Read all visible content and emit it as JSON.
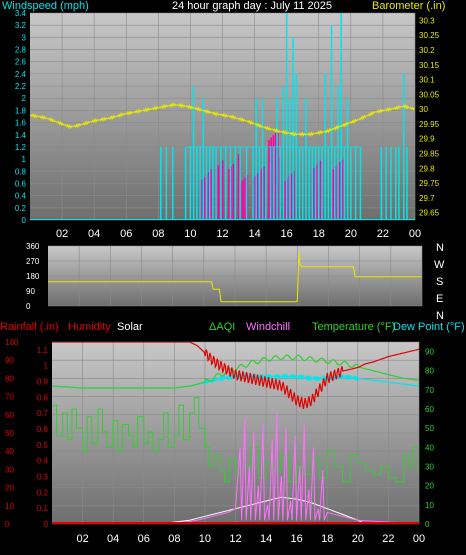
{
  "header": {
    "left_label": "Windspeed (mph)",
    "title": "24 hour graph day : July 11 2025",
    "right_label": "Barometer (.in)"
  },
  "colors": {
    "background": "#000000",
    "panel_light": "#c8c8c8",
    "panel_dark": "#707070",
    "grid": "#8a8a8a",
    "wind": "#00e5ee",
    "gust_fill": "#ff00a0",
    "barometer": "#e8e800",
    "direction": "#e8e800",
    "rain": "#e00000",
    "humidity": "#e00000",
    "solar": "#ffffff",
    "aqi": "#30d030",
    "windchill": "#ff70ff",
    "temperature": "#30d030",
    "dewpoint": "#00e5ee",
    "axis_text_left_top": "#00e5ee",
    "axis_text_right_top": "#e8e800",
    "axis_text_left_bottom": "#e00000",
    "axis_text_right_bottom": "#30d030"
  },
  "bottom_legend": {
    "rainfall": "Rainfall (.in)",
    "humidity": "Humidity",
    "solar": "Solar",
    "aqi": "AQI",
    "windchill": "Windchill",
    "temperature": "Temperature (°F)",
    "dewpoint": "Dew Point (°F)"
  },
  "compass": [
    "N",
    "W",
    "S",
    "E",
    "N"
  ],
  "chart_data": [
    {
      "type": "line",
      "id": "wind_barometer",
      "title": "24 hour graph day : July 11 2025",
      "x_hours": [
        0,
        24
      ],
      "x_ticks": [
        "02",
        "04",
        "06",
        "08",
        "10",
        "12",
        "14",
        "16",
        "18",
        "20",
        "22",
        "00"
      ],
      "ylabel_left": "Windspeed (mph)",
      "ylim_left": [
        0,
        3.4
      ],
      "y_ticks_left": [
        "0",
        "0.2",
        "0.4",
        "0.6",
        "0.8",
        "1",
        "1.2",
        "1.4",
        "1.6",
        "1.8",
        "2",
        "2.2",
        "2.4",
        "2.6",
        "2.8",
        "3",
        "3.2",
        "3.4"
      ],
      "ylabel_right": "Barometer (.in)",
      "ylim_right": [
        29.625,
        30.325
      ],
      "y_ticks_right": [
        "29.65",
        "29.7",
        "29.75",
        "29.8",
        "29.85",
        "29.9",
        "29.95",
        "30",
        "30.05",
        "30.1",
        "30.15",
        "30.2",
        "30.25",
        "30.3"
      ],
      "barometer": {
        "x": [
          0,
          1,
          2,
          2.5,
          3,
          4,
          5,
          6,
          7,
          8,
          9,
          9.7,
          10.5,
          11.5,
          12.5,
          13.5,
          14.5,
          15.5,
          16.5,
          17.5,
          18.5,
          19.5,
          20.5,
          21.5,
          22.5,
          23.3,
          24
        ],
        "y": [
          29.98,
          29.97,
          29.95,
          29.94,
          29.945,
          29.96,
          29.97,
          29.985,
          29.995,
          30.005,
          30.015,
          30.01,
          30.0,
          29.985,
          29.975,
          29.96,
          29.94,
          29.925,
          29.915,
          29.915,
          29.925,
          29.945,
          29.965,
          29.99,
          30.0,
          30.01,
          30.0
        ]
      },
      "wind_spikes": [
        {
          "x": 8.15,
          "y": 1.2
        },
        {
          "x": 8.5,
          "y": 1.2
        },
        {
          "x": 8.9,
          "y": 1.2
        },
        {
          "x": 9.7,
          "y": 1.2
        },
        {
          "x": 10.0,
          "y": 1.2
        },
        {
          "x": 10.2,
          "y": 2.2
        },
        {
          "x": 10.4,
          "y": 1.2
        },
        {
          "x": 10.6,
          "y": 1.2
        },
        {
          "x": 10.8,
          "y": 2.0
        },
        {
          "x": 11.0,
          "y": 1.2
        },
        {
          "x": 11.2,
          "y": 1.2
        },
        {
          "x": 11.4,
          "y": 1.2
        },
        {
          "x": 11.6,
          "y": 1.2
        },
        {
          "x": 11.9,
          "y": 1.2
        },
        {
          "x": 12.2,
          "y": 1.2
        },
        {
          "x": 12.5,
          "y": 1.2
        },
        {
          "x": 12.8,
          "y": 1.2
        },
        {
          "x": 13.1,
          "y": 1.2
        },
        {
          "x": 13.5,
          "y": 1.2
        },
        {
          "x": 13.9,
          "y": 1.2
        },
        {
          "x": 14.1,
          "y": 2.0
        },
        {
          "x": 14.3,
          "y": 1.2
        },
        {
          "x": 14.5,
          "y": 2.0
        },
        {
          "x": 14.7,
          "y": 1.2
        },
        {
          "x": 15.0,
          "y": 1.2
        },
        {
          "x": 15.2,
          "y": 1.2
        },
        {
          "x": 15.4,
          "y": 2.0
        },
        {
          "x": 15.6,
          "y": 1.2
        },
        {
          "x": 15.8,
          "y": 2.2
        },
        {
          "x": 16.0,
          "y": 3.4
        },
        {
          "x": 16.2,
          "y": 2.0
        },
        {
          "x": 16.4,
          "y": 3.0
        },
        {
          "x": 16.6,
          "y": 2.4
        },
        {
          "x": 16.8,
          "y": 1.2
        },
        {
          "x": 17.0,
          "y": 1.2
        },
        {
          "x": 17.2,
          "y": 2.0
        },
        {
          "x": 17.4,
          "y": 1.2
        },
        {
          "x": 17.6,
          "y": 1.2
        },
        {
          "x": 17.8,
          "y": 1.2
        },
        {
          "x": 18.0,
          "y": 1.2
        },
        {
          "x": 18.2,
          "y": 1.2
        },
        {
          "x": 18.4,
          "y": 2.4
        },
        {
          "x": 18.6,
          "y": 1.2
        },
        {
          "x": 18.8,
          "y": 3.2
        },
        {
          "x": 19.0,
          "y": 1.2
        },
        {
          "x": 19.2,
          "y": 2.2
        },
        {
          "x": 19.4,
          "y": 3.4
        },
        {
          "x": 19.6,
          "y": 1.2
        },
        {
          "x": 19.8,
          "y": 2.0
        },
        {
          "x": 20.0,
          "y": 1.2
        },
        {
          "x": 20.3,
          "y": 1.2
        },
        {
          "x": 20.6,
          "y": 1.2
        },
        {
          "x": 21.9,
          "y": 1.2
        },
        {
          "x": 22.2,
          "y": 1.2
        },
        {
          "x": 22.5,
          "y": 1.2
        },
        {
          "x": 22.8,
          "y": 1.2
        },
        {
          "x": 23.0,
          "y": 1.2
        },
        {
          "x": 23.3,
          "y": 2.4
        },
        {
          "x": 23.5,
          "y": 1.2
        }
      ],
      "gust_fill_ranges": [
        [
          10.6,
          11.3,
          0.6
        ],
        [
          11.6,
          12.1,
          0.6
        ],
        [
          12.4,
          12.8,
          0.6
        ],
        [
          13.0,
          13.6,
          0.6
        ],
        [
          13.9,
          14.6,
          0.6
        ],
        [
          14.9,
          15.7,
          1.0
        ],
        [
          15.9,
          16.5,
          0.6
        ],
        [
          17.7,
          18.2,
          0.6
        ],
        [
          18.9,
          19.7,
          0.6
        ]
      ]
    },
    {
      "type": "line",
      "id": "wind_direction",
      "x_hours": [
        0,
        24
      ],
      "ylim": [
        0,
        360
      ],
      "y_ticks": [
        "0",
        "90",
        "180",
        "270",
        "360"
      ],
      "direction": {
        "x": [
          0,
          10.5,
          10.6,
          11.0,
          11.1,
          15.9,
          16.0,
          16.1,
          16.15,
          16.3,
          19.6,
          19.7,
          24
        ],
        "y": [
          145,
          145,
          100,
          100,
          25,
          25,
          30,
          330,
          250,
          235,
          235,
          175,
          175
        ]
      }
    },
    {
      "type": "line",
      "id": "temp_humidity",
      "x_hours": [
        0,
        24
      ],
      "ylim_left": [
        0,
        100
      ],
      "y_ticks_left": [
        "0",
        "10",
        "20",
        "30",
        "40",
        "50",
        "60",
        "70",
        "80",
        "90",
        "100"
      ],
      "rain_ticks": [
        "0",
        "0.1",
        "0.2",
        "0.3",
        "0.4",
        "0.5",
        "0.6",
        "0.7",
        "0.8",
        "0.9",
        "1",
        "1.1"
      ],
      "ylim_right": [
        0,
        95
      ],
      "y_ticks_right": [
        "0",
        "10",
        "20",
        "30",
        "40",
        "50",
        "60",
        "70",
        "80",
        "90"
      ],
      "humidity": {
        "x": [
          0,
          1,
          3,
          5,
          7,
          8.5,
          9.0,
          9.5,
          10.0,
          10.5,
          11.0,
          12.0,
          13.0,
          14.0,
          15.0,
          15.5,
          16.0,
          16.5,
          17.0,
          17.5,
          18.0,
          19.0,
          20.0,
          20.5,
          21.0,
          22.0,
          23.0,
          24.0
        ],
        "y": [
          100,
          100,
          100,
          100,
          100,
          100,
          100,
          98,
          94,
          90,
          87,
          82,
          80,
          78,
          76,
          72,
          68,
          66,
          68,
          74,
          80,
          84,
          86,
          88,
          89,
          92,
          94,
          96
        ]
      },
      "temperature": {
        "x": [
          0,
          2,
          4,
          6,
          8,
          9,
          10,
          10.5,
          11,
          12,
          13,
          14,
          15,
          16,
          17,
          18,
          19,
          20,
          21,
          22,
          23,
          24
        ],
        "y": [
          72,
          71,
          71,
          71,
          71,
          72,
          74,
          76,
          78,
          81,
          84,
          86,
          87,
          87,
          86,
          85,
          84,
          82,
          80,
          78,
          76,
          75
        ]
      },
      "dewpoint": {
        "x": [
          0,
          2,
          4,
          6,
          8,
          9,
          10,
          11,
          12,
          13,
          14,
          15,
          16,
          17,
          18,
          19,
          20,
          21,
          22,
          23,
          24
        ],
        "y": [
          72,
          71,
          71,
          71,
          71,
          72,
          74,
          76,
          77,
          77,
          77,
          77,
          77,
          76,
          76,
          77,
          76,
          75,
          74,
          73,
          72
        ]
      },
      "aqi": {
        "x": [
          0,
          0.3,
          0.7,
          1.0,
          1.3,
          1.6,
          2.0,
          2.3,
          2.6,
          3.0,
          3.3,
          3.6,
          4.0,
          4.3,
          4.6,
          5.0,
          5.3,
          5.6,
          6.0,
          6.3,
          6.6,
          7.0,
          7.3,
          7.6,
          8.0,
          8.3,
          8.6,
          9.0,
          9.3,
          9.6,
          10.0,
          10.3,
          10.6,
          11.0,
          11.3,
          11.6,
          12.0,
          12.5,
          13.0,
          13.5,
          14.0,
          14.5,
          15.0,
          15.5,
          16.0,
          16.5,
          17.0,
          17.5,
          18.0,
          18.5,
          19.0,
          19.5,
          20.0,
          20.5,
          21.0,
          21.5,
          22.0,
          22.5,
          23.0,
          23.3,
          23.6,
          24.0
        ],
        "y": [
          62,
          46,
          58,
          44,
          60,
          50,
          38,
          56,
          42,
          60,
          48,
          40,
          54,
          38,
          52,
          46,
          40,
          56,
          42,
          48,
          38,
          44,
          58,
          40,
          46,
          62,
          44,
          58,
          66,
          50,
          40,
          30,
          36,
          28,
          22,
          34,
          26,
          30,
          40,
          24,
          32,
          28,
          36,
          22,
          30,
          26,
          34,
          24,
          38,
          30,
          22,
          36,
          32,
          28,
          26,
          30,
          24,
          22,
          36,
          30,
          40,
          26
        ]
      },
      "windchill": {
        "x": [
          0,
          8,
          9.5,
          10.5,
          11.5,
          12.0,
          12.3,
          12.6,
          12.9,
          13.2,
          13.5,
          13.8,
          14.1,
          14.4,
          14.7,
          15.0,
          15.3,
          15.6,
          15.9,
          16.2,
          16.5,
          16.8,
          17.1,
          17.4,
          17.7,
          18.0,
          19.0,
          20.0,
          24.0
        ],
        "y": [
          0,
          0,
          2,
          4,
          6,
          8,
          40,
          55,
          30,
          48,
          20,
          52,
          10,
          44,
          58,
          25,
          50,
          12,
          46,
          30,
          52,
          18,
          40,
          8,
          28,
          6,
          4,
          2,
          0
        ]
      },
      "solar": {
        "x": [
          0,
          6.5,
          8,
          9,
          10,
          11,
          12,
          13,
          14,
          15,
          16,
          17,
          18,
          19,
          20,
          20.5,
          24
        ],
        "y": [
          0,
          0,
          1,
          2,
          4,
          6,
          8,
          10,
          12,
          14,
          13,
          11,
          8,
          5,
          2,
          0,
          0
        ]
      }
    }
  ]
}
